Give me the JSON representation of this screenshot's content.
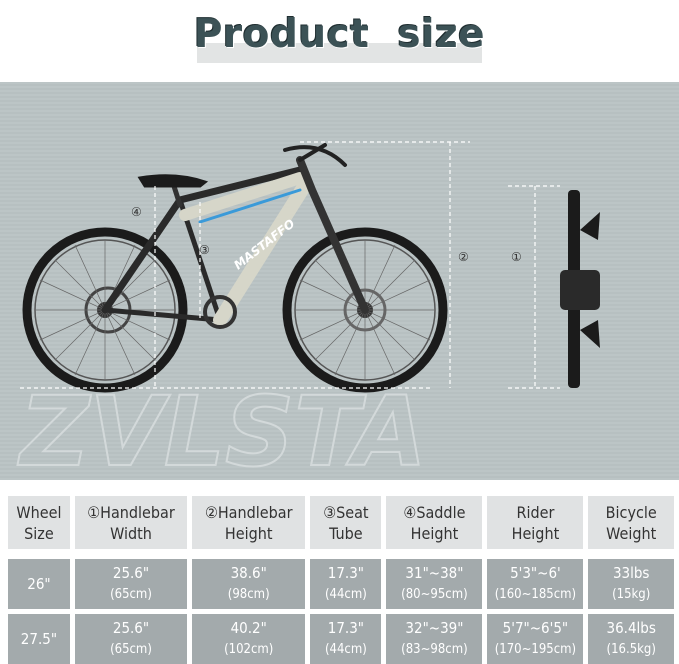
{
  "title": {
    "word1": "Product",
    "word2": "size"
  },
  "watermark": "ZVLSTA",
  "bike_brand": "MASTAFFO",
  "markers": {
    "handlebar_width": "①",
    "handlebar_height": "②",
    "seat_tube": "③",
    "saddle_height": "④"
  },
  "colors": {
    "panel": "#bcc5c6",
    "title": "#3c5256",
    "header_cell": "#e0e2e3",
    "data_cell": "#a3aaac",
    "frame_accent": "#3a9ad9"
  },
  "table": {
    "headers": [
      [
        "Wheel",
        "Size"
      ],
      [
        "①Handlebar",
        "Width"
      ],
      [
        "②Handlebar",
        "Height"
      ],
      [
        "③Seat",
        "Tube"
      ],
      [
        "④Saddle",
        "Height"
      ],
      [
        "Rider",
        "Height"
      ],
      [
        "Bicycle",
        "Weight"
      ]
    ],
    "rows": [
      {
        "wheel": "26\"",
        "cells": [
          [
            "25.6\"",
            "(65cm)"
          ],
          [
            "38.6\"",
            "(98cm)"
          ],
          [
            "17.3\"",
            "(44cm)"
          ],
          [
            "31\"~38\"",
            "(80~95cm)"
          ],
          [
            "5'3\"~6'",
            "(160~185cm)"
          ],
          [
            "33lbs",
            "(15kg)"
          ]
        ]
      },
      {
        "wheel": "27.5\"",
        "cells": [
          [
            "25.6\"",
            "(65cm)"
          ],
          [
            "40.2\"",
            "(102cm)"
          ],
          [
            "17.3\"",
            "(44cm)"
          ],
          [
            "32\"~39\"",
            "(83~98cm)"
          ],
          [
            "5'7\"~6'5\"",
            "(170~195cm)"
          ],
          [
            "36.4lbs",
            "(16.5kg)"
          ]
        ]
      }
    ]
  }
}
